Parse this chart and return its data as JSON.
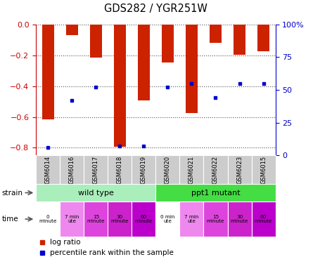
{
  "title": "GDS282 / YGR251W",
  "samples": [
    "GSM6014",
    "GSM6016",
    "GSM6017",
    "GSM6018",
    "GSM6019",
    "GSM6020",
    "GSM6021",
    "GSM6022",
    "GSM6023",
    "GSM6015"
  ],
  "log_ratios": [
    -0.615,
    -0.07,
    -0.215,
    -0.795,
    -0.495,
    -0.245,
    -0.575,
    -0.12,
    -0.195,
    -0.175
  ],
  "percentile_ranks": [
    6,
    42,
    52,
    7,
    7,
    52,
    55,
    44,
    55,
    55
  ],
  "bar_color": "#cc2200",
  "percentile_color": "#0000cc",
  "ylim_left": [
    -0.85,
    0.0
  ],
  "ylim_right": [
    0,
    100
  ],
  "yticks_left": [
    0.0,
    -0.2,
    -0.4,
    -0.6,
    -0.8
  ],
  "yticks_right": [
    0,
    25,
    50,
    75,
    100
  ],
  "strain_data": [
    {
      "text": "wild type",
      "start": 0,
      "end": 5,
      "color": "#aaeebb"
    },
    {
      "text": "ppt1 mutant",
      "start": 5,
      "end": 10,
      "color": "#44dd44"
    }
  ],
  "time_texts": [
    "0\nminute",
    "7 min\nute",
    "15\nminute",
    "30\nminute",
    "60\nminute",
    "0 min\nute",
    "7 min\nute",
    "15\nminute",
    "30\nminute",
    "60\nminute"
  ],
  "time_colors": [
    "#ffffff",
    "#ee88ee",
    "#dd44dd",
    "#cc22cc",
    "#bb00cc",
    "#ffffff",
    "#ee88ee",
    "#dd44dd",
    "#cc22cc",
    "#bb00cc"
  ],
  "sample_bg_color": "#cccccc",
  "chart_bg": "#ffffff",
  "grid_color": "#555555",
  "left_axis_color": "#cc0000",
  "right_axis_color": "#0000cc",
  "bar_width": 0.5
}
